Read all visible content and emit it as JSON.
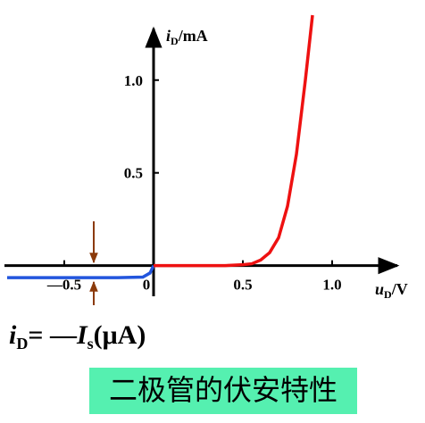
{
  "chart_data": {
    "type": "line",
    "x_label": {
      "main": "u",
      "sub": "D",
      "unit": "/V"
    },
    "y_label": {
      "main": "i",
      "sub": "D",
      "unit": "/mA"
    },
    "annotation": {
      "main": "i",
      "sub": "D",
      "mid": "= —",
      "main2": "I",
      "sub2": "s",
      "unit": "(μA)"
    },
    "caption": "二极管的伏安特性",
    "xlim": [
      -0.835,
      1.365
    ],
    "ylim": [
      -0.3,
      1.35
    ],
    "xticks": [
      {
        "value": -0.5,
        "label": "—0.5"
      },
      0,
      0.5,
      {
        "value": 1,
        "label": "1.0"
      }
    ],
    "yticks": [
      0.5,
      {
        "value": 1,
        "label": "1.0"
      }
    ],
    "grid": false,
    "series": [
      {
        "color": "#2255dd",
        "x": [
          -0.82,
          -0.6,
          -0.4,
          -0.2,
          -0.06,
          -0.02,
          0
        ],
        "values": [
          -0.065,
          -0.065,
          -0.065,
          -0.065,
          -0.062,
          -0.04,
          0
        ]
      },
      {
        "color": "#ee1111",
        "x": [
          0,
          0.1,
          0.2,
          0.3,
          0.4,
          0.5,
          0.55,
          0.6,
          0.65,
          0.7,
          0.75,
          0.8,
          0.85,
          0.89
        ],
        "values": [
          0,
          0,
          0,
          0,
          0,
          0.005,
          0.01,
          0.03,
          0.07,
          0.15,
          0.32,
          0.6,
          1.0,
          1.35
        ]
      }
    ]
  }
}
